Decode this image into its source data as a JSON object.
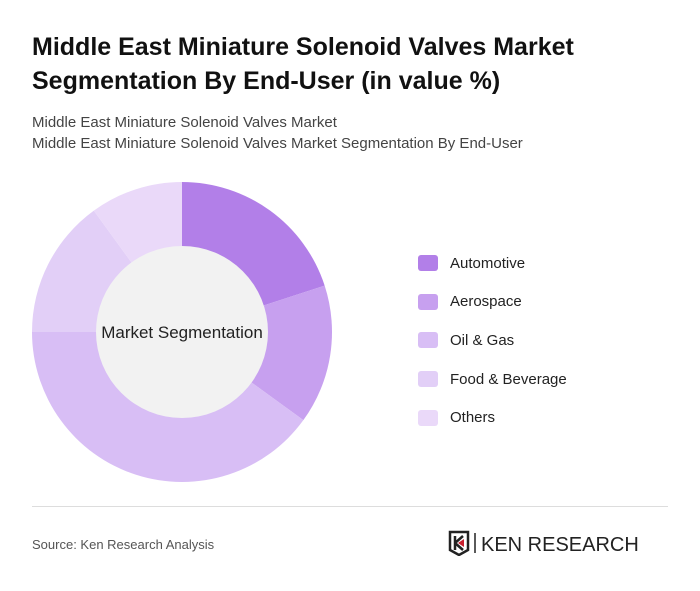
{
  "title": "Middle East Miniature Solenoid Valves Market Segmentation By End-User (in value %)",
  "subtitle1": "Middle East Miniature Solenoid Valves Market",
  "subtitle2": "Middle East Miniature Solenoid Valves Market Segmentation By End-User",
  "source": "Source: Ken Research Analysis",
  "logo_text": "KEN RESEARCH",
  "chart_data": {
    "type": "pie",
    "variant": "donut",
    "center_label": "Market Segmentation",
    "categories": [
      "Automotive",
      "Aerospace",
      "Oil & Gas",
      "Food & Beverage",
      "Others"
    ],
    "values": [
      20,
      15,
      40,
      15,
      10
    ],
    "unit": "%",
    "colors": [
      "#b27fe8",
      "#c7a0ef",
      "#d8bef5",
      "#e2cff7",
      "#ead9f9"
    ],
    "legend_position": "right"
  }
}
